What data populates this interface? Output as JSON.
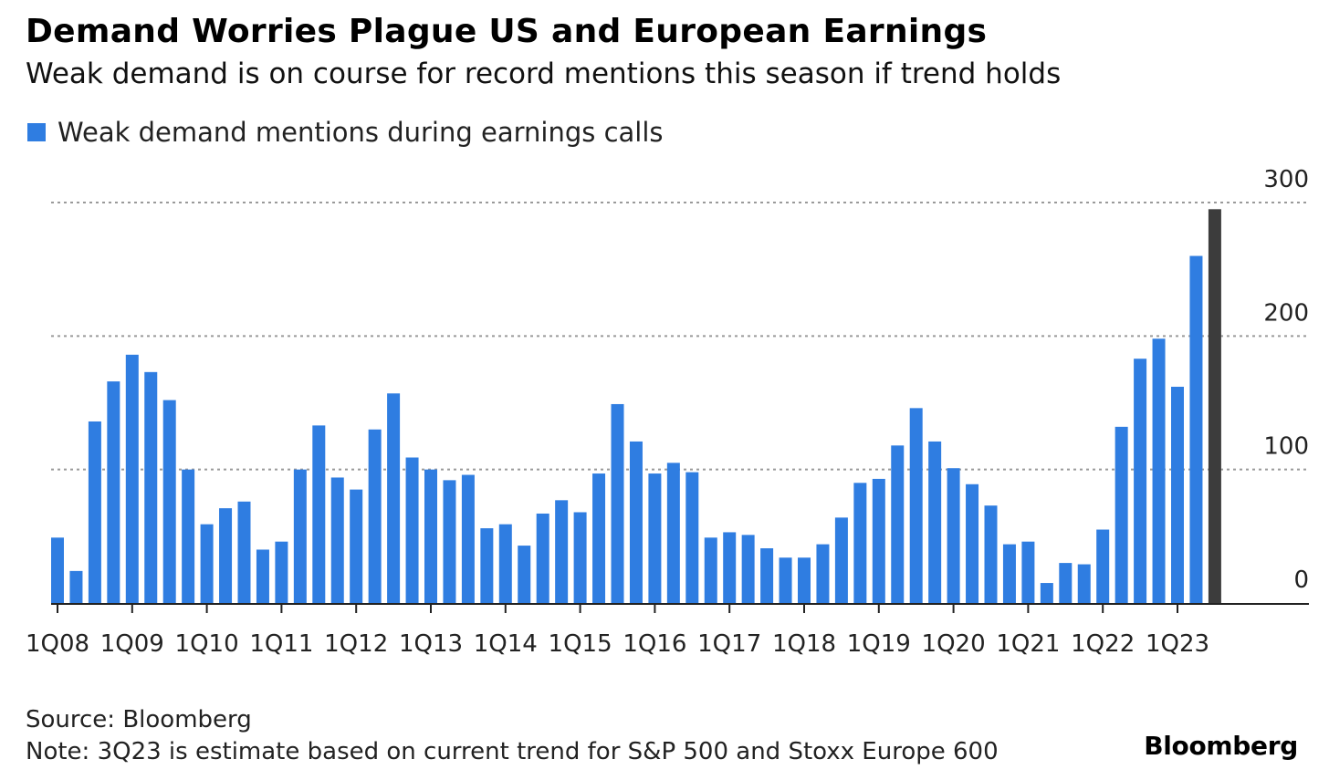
{
  "header": {
    "title": "Demand Worries Plague US and European Earnings",
    "subtitle": "Weak demand is on course for record mentions this season if trend holds"
  },
  "legend": {
    "label": "Weak demand mentions during earnings calls",
    "color": "#2f7de1"
  },
  "colors": {
    "bar": "#2f7de1",
    "estimate_bar": "#3c3c3c",
    "grid": "#9a9a9a",
    "axis": "#222222"
  },
  "chart_data": {
    "type": "bar",
    "legend_placement": "top-left",
    "grid": true,
    "y_axis_position": "right",
    "ylim": [
      0,
      300
    ],
    "yticks": [
      0,
      100,
      200,
      300
    ],
    "xtick_labels": [
      "1Q08",
      "1Q09",
      "1Q10",
      "1Q11",
      "1Q12",
      "1Q13",
      "1Q14",
      "1Q15",
      "1Q16",
      "1Q17",
      "1Q18",
      "1Q19",
      "1Q20",
      "1Q21",
      "1Q22",
      "1Q23"
    ],
    "categories": [
      "1Q08",
      "2Q08",
      "3Q08",
      "4Q08",
      "1Q09",
      "2Q09",
      "3Q09",
      "4Q09",
      "1Q10",
      "2Q10",
      "3Q10",
      "4Q10",
      "1Q11",
      "2Q11",
      "3Q11",
      "4Q11",
      "1Q12",
      "2Q12",
      "3Q12",
      "4Q12",
      "1Q13",
      "2Q13",
      "3Q13",
      "4Q13",
      "1Q14",
      "2Q14",
      "3Q14",
      "4Q14",
      "1Q15",
      "2Q15",
      "3Q15",
      "4Q15",
      "1Q16",
      "2Q16",
      "3Q16",
      "4Q16",
      "1Q17",
      "2Q17",
      "3Q17",
      "4Q17",
      "1Q18",
      "2Q18",
      "3Q18",
      "4Q18",
      "1Q19",
      "2Q19",
      "3Q19",
      "4Q19",
      "1Q20",
      "2Q20",
      "3Q20",
      "4Q20",
      "1Q21",
      "2Q21",
      "3Q21",
      "4Q21",
      "1Q22",
      "2Q22",
      "3Q22",
      "4Q22",
      "1Q23",
      "2Q23",
      "3Q23"
    ],
    "series": [
      {
        "name": "Weak demand mentions during earnings calls",
        "values": [
          49,
          24,
          136,
          166,
          186,
          173,
          152,
          100,
          59,
          71,
          76,
          40,
          46,
          100,
          133,
          94,
          85,
          130,
          157,
          109,
          100,
          92,
          96,
          56,
          59,
          43,
          67,
          77,
          68,
          97,
          149,
          121,
          97,
          105,
          98,
          49,
          53,
          51,
          41,
          34,
          34,
          44,
          64,
          90,
          93,
          118,
          146,
          121,
          101,
          89,
          73,
          44,
          46,
          15,
          30,
          29,
          55,
          132,
          183,
          198,
          162,
          260,
          295
        ]
      }
    ],
    "estimate_index": 62
  },
  "footer": {
    "source": "Source: Bloomberg",
    "note": "Note: 3Q23 is estimate based on current trend for S&P 500 and Stoxx Europe 600",
    "brand": "Bloomberg"
  }
}
